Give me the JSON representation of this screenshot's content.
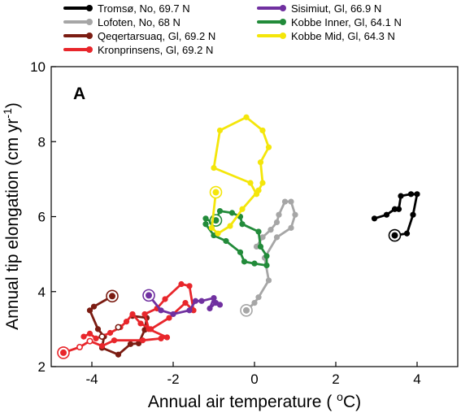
{
  "chart_data": {
    "type": "line",
    "panel_label": "A",
    "xlabel": "Annual air temperature ( ",
    "xlabel_sup": "o",
    "xlabel_unit": "C)",
    "ylabel": "Annual tip elongation (cm yr",
    "ylabel_sup": "-1",
    "ylabel_end": ")",
    "xlim": [
      -5,
      5
    ],
    "ylim": [
      2,
      10
    ],
    "xticks": [
      -4,
      -2,
      0,
      2,
      4
    ],
    "yticks": [
      2,
      4,
      6,
      8,
      10
    ],
    "grid": false,
    "legend_position": "top",
    "series": [
      {
        "name": "Tromsø, No, 69.7 N",
        "color": "#000000",
        "hollow": false,
        "start": [
          3.45,
          5.5
        ],
        "points": [
          [
            3.45,
            5.5
          ],
          [
            3.75,
            5.55
          ],
          [
            3.9,
            6.05
          ],
          [
            4.0,
            6.6
          ],
          [
            3.85,
            6.6
          ],
          [
            3.6,
            6.55
          ],
          [
            3.55,
            6.2
          ],
          [
            3.45,
            6.2
          ],
          [
            3.25,
            6.05
          ],
          [
            2.95,
            5.95
          ]
        ]
      },
      {
        "name": "Lofoten, No, 68 N",
        "color": "#a6a6a6",
        "hollow": false,
        "start": [
          -0.2,
          3.5
        ],
        "points": [
          [
            -0.2,
            3.5
          ],
          [
            0.0,
            3.7
          ],
          [
            0.1,
            3.85
          ],
          [
            0.35,
            4.3
          ],
          [
            0.25,
            4.9
          ],
          [
            0.55,
            5.45
          ],
          [
            0.9,
            5.7
          ],
          [
            1.0,
            6.05
          ],
          [
            0.9,
            6.4
          ],
          [
            0.75,
            6.4
          ],
          [
            0.6,
            6.05
          ],
          [
            0.55,
            5.85
          ],
          [
            0.4,
            5.65
          ],
          [
            0.2,
            5.45
          ],
          [
            0.05,
            5.2
          ]
        ]
      },
      {
        "name": "Qeqertarsuaq, Gl, 69.2 N",
        "color": "#7b1c12",
        "hollow": false,
        "start": [
          -3.5,
          3.88
        ],
        "points": [
          [
            -3.5,
            3.88
          ],
          [
            -3.95,
            3.6
          ],
          [
            -4.05,
            3.5
          ],
          [
            -3.85,
            3.0
          ],
          [
            -3.7,
            2.8
          ],
          [
            -3.75,
            2.5
          ],
          [
            -3.35,
            2.32
          ],
          [
            -3.05,
            2.6
          ],
          [
            -2.85,
            2.62
          ],
          [
            -2.7,
            2.98
          ],
          [
            -2.65,
            3.3
          ],
          [
            -3.0,
            3.35
          ]
        ]
      },
      {
        "name": "Kronprinsens, Gl, 69.2 N",
        "color": "#e8262b",
        "hollow": false,
        "start": [
          -4.7,
          2.37
        ],
        "points": [
          [
            -4.7,
            2.37
          ],
          [
            -4.3,
            2.52
          ],
          [
            -4.05,
            2.68
          ],
          [
            -3.75,
            2.55
          ],
          [
            -3.45,
            2.7
          ],
          [
            -2.75,
            2.7
          ],
          [
            -2.3,
            2.75
          ],
          [
            -2.15,
            2.78
          ],
          [
            -2.6,
            3.0
          ],
          [
            -2.7,
            3.4
          ],
          [
            -2.4,
            3.55
          ],
          [
            -2.2,
            3.8
          ],
          [
            -1.8,
            4.2
          ],
          [
            -1.6,
            4.15
          ],
          [
            -1.5,
            3.5
          ],
          [
            -1.7,
            3.7
          ],
          [
            -2.1,
            3.3
          ],
          [
            -2.55,
            3.0
          ],
          [
            -2.8,
            3.15
          ],
          [
            -3.0,
            3.4
          ],
          [
            -3.15,
            3.2
          ],
          [
            -3.3,
            3.05
          ],
          [
            -3.55,
            2.9
          ],
          [
            -3.9,
            2.75
          ],
          [
            -4.05,
            2.88
          ],
          [
            -4.2,
            2.8
          ]
        ]
      },
      {
        "name": "Sisimiut, Gl, 66.9 N",
        "color": "#7030a0",
        "hollow": false,
        "start": [
          -2.6,
          3.9
        ],
        "points": [
          [
            -2.6,
            3.9
          ],
          [
            -2.3,
            3.5
          ],
          [
            -2.0,
            3.4
          ],
          [
            -1.6,
            3.5
          ],
          [
            -1.45,
            3.75
          ],
          [
            -1.3,
            3.75
          ],
          [
            -1.0,
            3.83
          ],
          [
            -1.1,
            3.55
          ],
          [
            -0.95,
            3.7
          ],
          [
            -0.85,
            3.65
          ]
        ]
      },
      {
        "name": "Kobbe Inner, Gl, 64.1 N",
        "color": "#228b3a",
        "hollow": false,
        "start": [
          -0.95,
          5.9
        ],
        "points": [
          [
            -0.95,
            5.9
          ],
          [
            -0.85,
            6.15
          ],
          [
            -0.55,
            6.1
          ],
          [
            -0.35,
            6.0
          ],
          [
            -0.3,
            5.8
          ],
          [
            0.1,
            5.6
          ],
          [
            0.15,
            5.2
          ],
          [
            0.3,
            4.95
          ],
          [
            0.3,
            4.7
          ],
          [
            0.0,
            4.75
          ],
          [
            -0.25,
            4.8
          ],
          [
            -0.35,
            5.05
          ],
          [
            -0.7,
            5.35
          ],
          [
            -1.0,
            5.5
          ],
          [
            -1.2,
            5.8
          ],
          [
            -1.2,
            5.95
          ],
          [
            -1.05,
            5.85
          ]
        ]
      },
      {
        "name": "Kobbe Mid, Gl, 64.3 N",
        "color": "#f4e60a",
        "hollow": false,
        "start": [
          -0.95,
          6.65
        ],
        "points": [
          [
            -0.95,
            6.65
          ],
          [
            -1.05,
            5.7
          ],
          [
            -0.9,
            5.55
          ],
          [
            -0.6,
            5.75
          ],
          [
            -0.3,
            6.2
          ],
          [
            0.1,
            6.7
          ],
          [
            0.2,
            6.9
          ],
          [
            0.15,
            7.45
          ],
          [
            0.35,
            7.85
          ],
          [
            0.2,
            8.3
          ],
          [
            -0.2,
            8.65
          ],
          [
            -0.85,
            8.3
          ],
          [
            -1.0,
            7.3
          ],
          [
            -0.1,
            6.9
          ],
          [
            0.05,
            6.6
          ]
        ]
      }
    ],
    "hollow_points": [
      {
        "series": "Qeqertarsuaq, Gl, 69.2 N",
        "color": "#7b1c12",
        "x": -3.35,
        "y": 3.05
      },
      {
        "series": "Kronprinsens, Gl, 69.2 N",
        "color": "#e8262b",
        "x": -4.3,
        "y": 2.52
      },
      {
        "series": "Kronprinsens, Gl, 69.2 N",
        "color": "#e8262b",
        "x": -4.05,
        "y": 2.68
      },
      {
        "series": "Qeqertarsuaq, Gl, 69.2 N",
        "color": "#7b1c12",
        "x": -3.75,
        "y": 2.8
      }
    ]
  }
}
